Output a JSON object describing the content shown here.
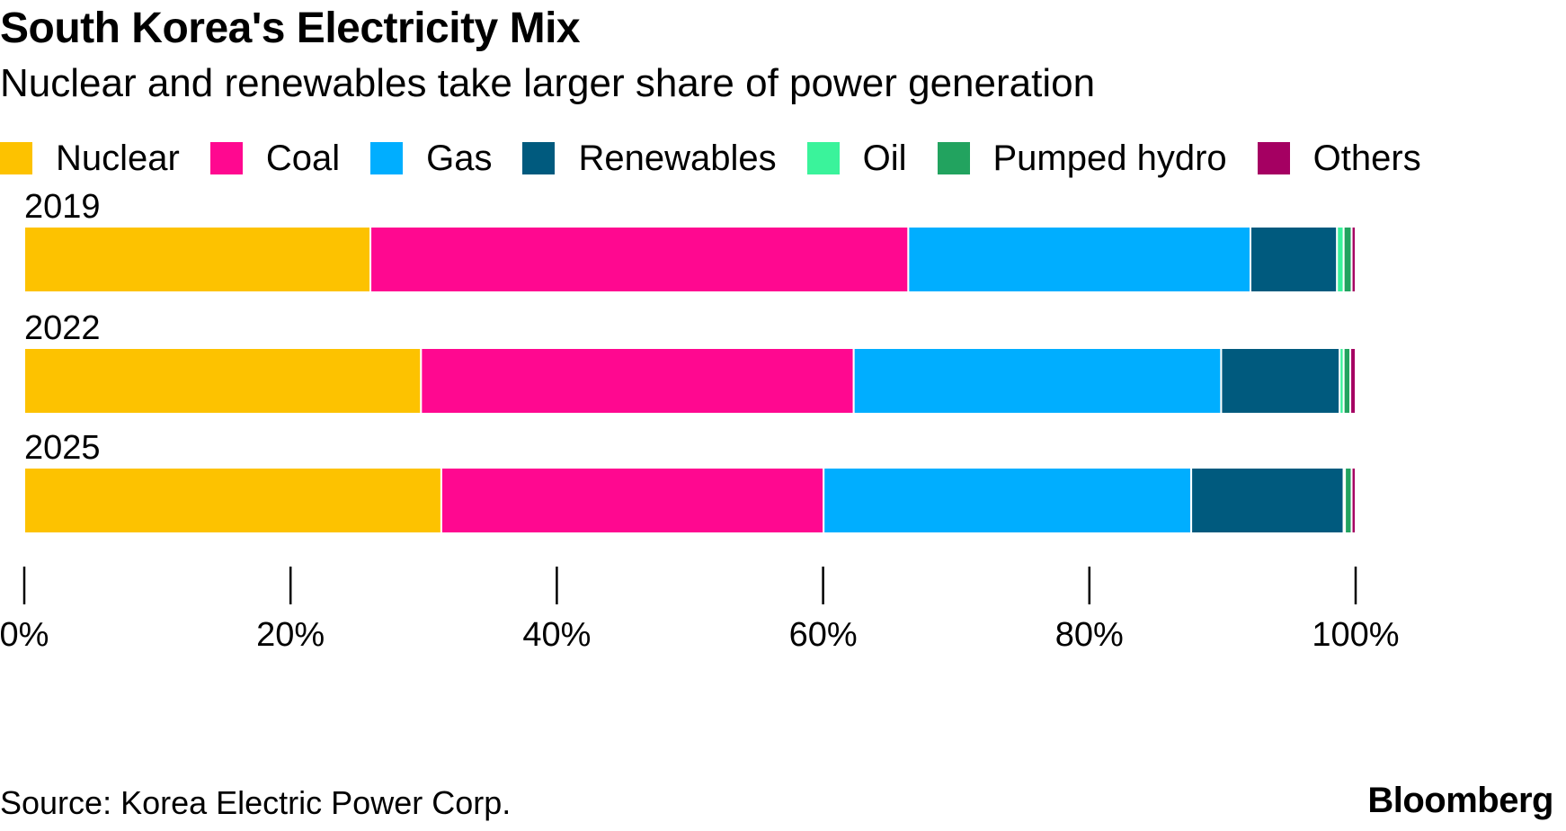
{
  "header": {
    "title": "South Korea's Electricity Mix",
    "subtitle": "Nuclear and renewables take larger share of power generation"
  },
  "footer": {
    "source": "Source: Korea Electric Power Corp.",
    "brand": "Bloomberg"
  },
  "chart_data": {
    "type": "bar",
    "orientation": "horizontal",
    "stacked": true,
    "categories": [
      "2019",
      "2022",
      "2025"
    ],
    "series": [
      {
        "name": "Nuclear",
        "color": "#FDC200",
        "values": [
          26.0,
          29.8,
          31.2
        ]
      },
      {
        "name": "Coal",
        "color": "#FF0890",
        "values": [
          40.4,
          32.5,
          28.6
        ]
      },
      {
        "name": "Gas",
        "color": "#00AEFF",
        "values": [
          25.7,
          27.6,
          27.5
        ]
      },
      {
        "name": "Renewables",
        "color": "#005A7E",
        "values": [
          6.5,
          8.9,
          11.4
        ]
      },
      {
        "name": "Oil",
        "color": "#3AF39B",
        "values": [
          0.5,
          0.3,
          0.1
        ]
      },
      {
        "name": "Pumped hydro",
        "color": "#22A35F",
        "values": [
          0.6,
          0.5,
          0.5
        ]
      },
      {
        "name": "Others",
        "color": "#A50062",
        "values": [
          0.3,
          0.4,
          0.3
        ]
      }
    ],
    "xlim": [
      0,
      100
    ],
    "xticks": [
      "0%",
      "20%",
      "40%",
      "60%",
      "80%",
      "100%"
    ],
    "legend_position": "top",
    "grid": false
  }
}
